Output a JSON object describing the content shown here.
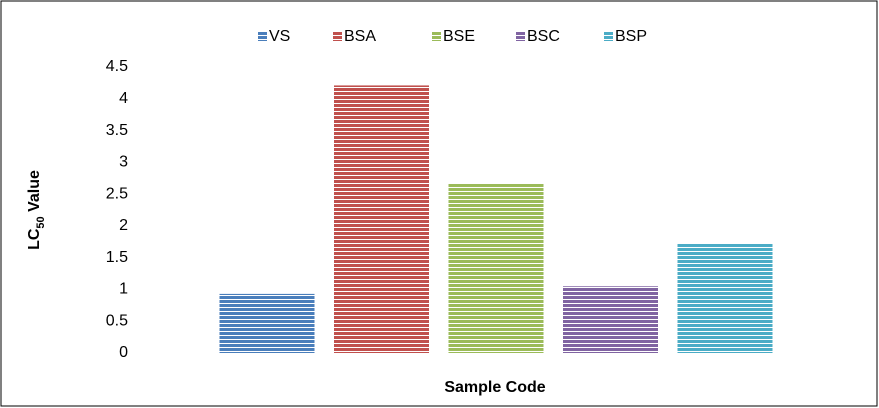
{
  "chart_data": {
    "type": "bar",
    "ylabel": [
      "LC",
      "50",
      " Value"
    ],
    "xlabel": "Sample Code",
    "categories": [
      null
    ],
    "series": [
      {
        "name": "VS",
        "color": "#4a7ebb",
        "values": [
          0.93
        ]
      },
      {
        "name": "BSA",
        "color": "#c0504d",
        "values": [
          4.21
        ]
      },
      {
        "name": "BSE",
        "color": "#9bbb59",
        "values": [
          2.66
        ]
      },
      {
        "name": "BSC",
        "color": "#8064a2",
        "values": [
          1.05
        ]
      },
      {
        "name": "BSP",
        "color": "#4bacc6",
        "values": [
          1.73
        ]
      }
    ],
    "ylim": [
      0,
      4.5
    ],
    "yticks": [
      0,
      0.5,
      1,
      1.5,
      2,
      2.5,
      3,
      3.5,
      4,
      4.5
    ],
    "legend": "top",
    "striped": true
  }
}
